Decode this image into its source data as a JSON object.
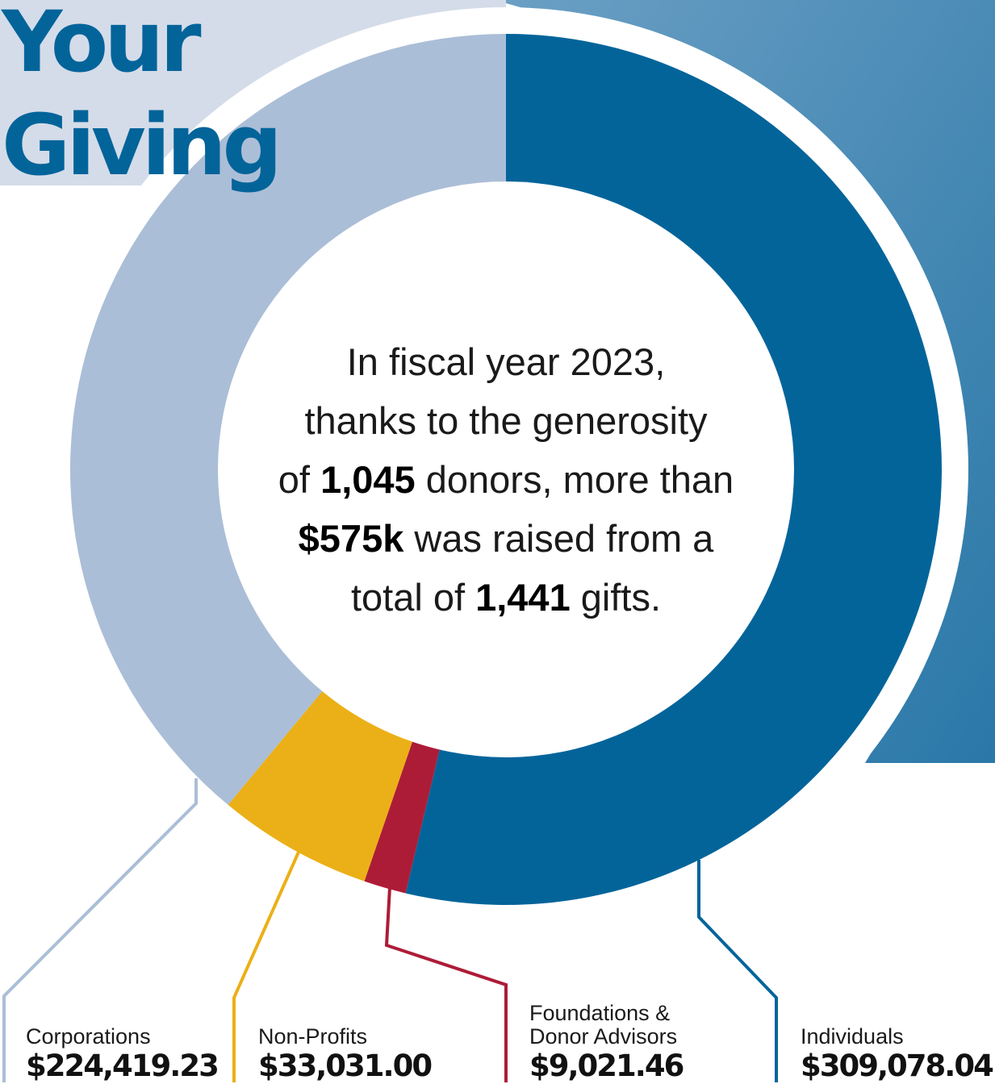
{
  "title": {
    "line1": "Your",
    "line2": "Giving"
  },
  "summary": {
    "p1": "In fiscal year 2023,",
    "p2": "thanks to the generosity",
    "p3a": "of ",
    "donors": "1,045",
    "p3b": " donors, more than",
    "raised": "$575k",
    "p4": " was raised from a",
    "p5a": "total of ",
    "gifts": "1,441",
    "p5b": " gifts."
  },
  "chart_data": {
    "type": "pie",
    "variant": "donut",
    "categories": [
      "Individuals",
      "Foundations & Donor Advisors",
      "Non-Profits",
      "Corporations"
    ],
    "series": [
      {
        "values": [
          309078.04,
          9021.46,
          33031.0,
          224419.23
        ]
      }
    ],
    "labels": [
      {
        "category": "Corporations",
        "value": "$224,419.23"
      },
      {
        "category": "Non-Profits",
        "value": "$33,031.00"
      },
      {
        "category": "Foundations & Donor Advisors",
        "display": "Foundations &\nDonor Advisors",
        "value": "$9,021.46"
      },
      {
        "category": "Individuals",
        "value": "$309,078.04"
      }
    ],
    "colors": [
      "#03649a",
      "#ad1c37",
      "#ebb017",
      "#abbed7"
    ]
  }
}
